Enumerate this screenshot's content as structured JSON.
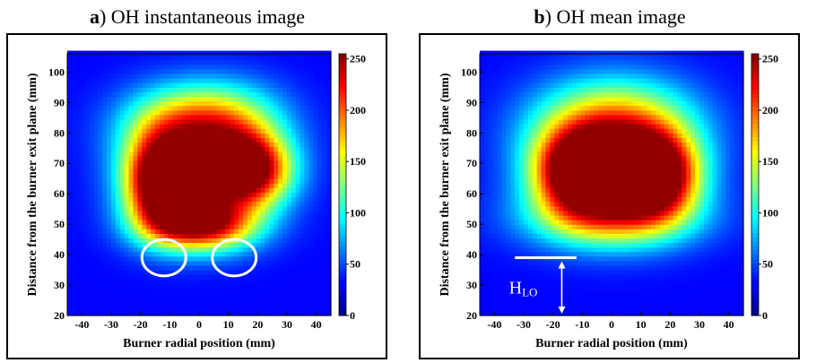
{
  "colors": {
    "colormap": [
      "#00007f",
      "#0000ff",
      "#007fff",
      "#00ffff",
      "#7fff7f",
      "#ffff00",
      "#ff7f00",
      "#ff0000",
      "#7f0000"
    ],
    "ellipse": "#ffffff",
    "annotation": "#ffffff"
  },
  "panels": [
    {
      "letter": "a",
      "title": ") OH instantaneous image"
    },
    {
      "letter": "b",
      "title": ") OH mean image",
      "annotation": {
        "label_main": "H",
        "label_sub": "LO"
      }
    }
  ],
  "chart_data": [
    {
      "type": "heatmap",
      "xlabel": "Burner radial position (mm)",
      "ylabel": "Distance from the burner exit plane (mm)",
      "xlim": [
        -45,
        45
      ],
      "ylim": [
        20,
        106
      ],
      "xticks": [
        -40,
        -30,
        -20,
        -10,
        0,
        10,
        20,
        30,
        40
      ],
      "yticks": [
        20,
        30,
        40,
        50,
        60,
        70,
        80,
        90,
        100
      ],
      "colorbar": {
        "range": [
          0,
          255
        ],
        "ticks": [
          0,
          50,
          100,
          150,
          200,
          250
        ]
      },
      "highlight_ellipses": [
        {
          "cx": -12,
          "cy": 39,
          "rx": 7.5,
          "ry": 6
        },
        {
          "cx": 12,
          "cy": 39,
          "rx": 7.5,
          "ry": 6
        }
      ],
      "hotspots": [
        {
          "x": -14,
          "y": 64,
          "sx": 8,
          "sy": 10,
          "v": 200
        },
        {
          "x": 17,
          "y": 68,
          "sx": 10,
          "sy": 8,
          "v": 210
        },
        {
          "x": 0,
          "y": 66,
          "sx": 16,
          "sy": 12,
          "v": 120
        },
        {
          "x": -8,
          "y": 83,
          "sx": 14,
          "sy": 9,
          "v": 95
        },
        {
          "x": 10,
          "y": 84,
          "sx": 14,
          "sy": 9,
          "v": 95
        },
        {
          "x": -5,
          "y": 50,
          "sx": 12,
          "sy": 6,
          "v": 110
        },
        {
          "x": 5,
          "y": 50,
          "sx": 12,
          "sy": 6,
          "v": 110
        }
      ]
    },
    {
      "type": "heatmap",
      "xlabel": "Burner radial position (mm)",
      "ylabel": "Distance from the burner exit plane (mm)",
      "xlim": [
        -45,
        45
      ],
      "ylim": [
        20,
        106
      ],
      "xticks": [
        -40,
        -30,
        -20,
        -10,
        0,
        10,
        20,
        30,
        40
      ],
      "yticks": [
        20,
        30,
        40,
        50,
        60,
        70,
        80,
        90,
        100
      ],
      "colorbar": {
        "range": [
          0,
          255
        ],
        "ticks": [
          0,
          50,
          100,
          150,
          200,
          250
        ]
      },
      "h_lo_line": {
        "x_from": -33,
        "x_to": -12,
        "y": 39,
        "arrow_x": -17,
        "arrow_to": 20
      },
      "hotspots": [
        {
          "x": -12,
          "y": 67,
          "sx": 10,
          "sy": 9,
          "v": 185
        },
        {
          "x": 15,
          "y": 66,
          "sx": 10,
          "sy": 9,
          "v": 215
        },
        {
          "x": 0,
          "y": 65,
          "sx": 17,
          "sy": 12,
          "v": 120
        },
        {
          "x": -8,
          "y": 82,
          "sx": 16,
          "sy": 11,
          "v": 90
        },
        {
          "x": 10,
          "y": 82,
          "sx": 16,
          "sy": 11,
          "v": 90
        },
        {
          "x": 0,
          "y": 52,
          "sx": 20,
          "sy": 7,
          "v": 100
        }
      ]
    }
  ]
}
